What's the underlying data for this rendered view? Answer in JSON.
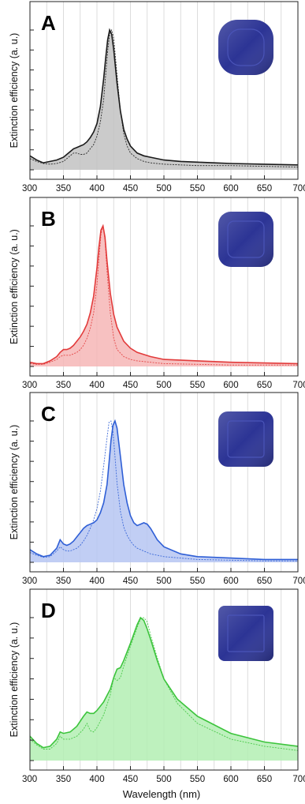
{
  "figure": {
    "xlabel": "Wavelength (nm)",
    "ylabel": "Extinction efficiency (a. u.)",
    "shape_icon_color": "#2c3495"
  },
  "chart_data": [
    {
      "panel": "A",
      "type": "line",
      "xlabel": "",
      "ylabel": "Extinction efficiency (a. u.)",
      "xlim": [
        300,
        700
      ],
      "xticks": [
        "300",
        "350",
        "400",
        "450",
        "500",
        "550",
        "600",
        "650",
        "700"
      ],
      "grid": "vertical",
      "color": "#1a1a1a",
      "fill_color": "#c2c2c2",
      "inset": "rounded-cube (strongly rounded)",
      "x": [
        300,
        310,
        320,
        330,
        340,
        350,
        355,
        360,
        365,
        370,
        375,
        380,
        385,
        390,
        395,
        400,
        405,
        410,
        413,
        416,
        419,
        422,
        425,
        430,
        435,
        440,
        445,
        450,
        460,
        470,
        480,
        500,
        525,
        550,
        575,
        600,
        650,
        700
      ],
      "series": [
        {
          "style": "solid",
          "values": [
            0.1,
            0.07,
            0.05,
            0.06,
            0.07,
            0.09,
            0.11,
            0.13,
            0.15,
            0.16,
            0.17,
            0.18,
            0.2,
            0.23,
            0.27,
            0.33,
            0.45,
            0.65,
            0.8,
            0.93,
            1.0,
            0.97,
            0.86,
            0.62,
            0.42,
            0.29,
            0.22,
            0.17,
            0.12,
            0.1,
            0.09,
            0.07,
            0.06,
            0.055,
            0.05,
            0.045,
            0.04,
            0.035
          ]
        },
        {
          "style": "dotted",
          "values": [
            0.08,
            0.06,
            0.045,
            0.04,
            0.045,
            0.06,
            0.08,
            0.1,
            0.12,
            0.12,
            0.11,
            0.11,
            0.12,
            0.15,
            0.18,
            0.24,
            0.34,
            0.5,
            0.68,
            0.85,
            0.97,
            1.0,
            0.94,
            0.68,
            0.42,
            0.26,
            0.17,
            0.12,
            0.08,
            0.06,
            0.05,
            0.04,
            0.035,
            0.03,
            0.03,
            0.03,
            0.025,
            0.02
          ]
        }
      ]
    },
    {
      "panel": "B",
      "type": "line",
      "xlabel": "",
      "ylabel": "Extinction efficiency (a. u.)",
      "xlim": [
        300,
        700
      ],
      "xticks": [
        "300",
        "350",
        "400",
        "450",
        "500",
        "550",
        "600",
        "650",
        "700"
      ],
      "grid": "vertical",
      "color": "#e23b3b",
      "fill_color": "#f6b6b6",
      "inset": "rounded-cube (moderately rounded)",
      "x": [
        300,
        310,
        320,
        330,
        340,
        345,
        350,
        355,
        360,
        365,
        370,
        375,
        380,
        385,
        390,
        395,
        400,
        403,
        406,
        409,
        412,
        415,
        420,
        425,
        430,
        440,
        450,
        460,
        480,
        500,
        550,
        600,
        650,
        700
      ],
      "series": [
        {
          "style": "solid",
          "values": [
            0.03,
            0.02,
            0.02,
            0.04,
            0.07,
            0.1,
            0.12,
            0.12,
            0.13,
            0.15,
            0.18,
            0.21,
            0.25,
            0.3,
            0.38,
            0.5,
            0.7,
            0.85,
            0.97,
            1.0,
            0.92,
            0.75,
            0.52,
            0.37,
            0.28,
            0.18,
            0.13,
            0.1,
            0.07,
            0.05,
            0.04,
            0.03,
            0.025,
            0.02
          ]
        },
        {
          "style": "dotted",
          "values": [
            0.02,
            0.015,
            0.015,
            0.03,
            0.05,
            0.07,
            0.08,
            0.08,
            0.08,
            0.09,
            0.1,
            0.12,
            0.15,
            0.2,
            0.27,
            0.38,
            0.58,
            0.76,
            0.94,
            1.0,
            0.9,
            0.68,
            0.38,
            0.2,
            0.12,
            0.07,
            0.05,
            0.04,
            0.03,
            0.02,
            0.015,
            0.01,
            0.01,
            0.01
          ]
        }
      ]
    },
    {
      "panel": "C",
      "type": "line",
      "xlabel": "",
      "ylabel": "Extinction efficiency (a. u.)",
      "xlim": [
        300,
        700
      ],
      "xticks": [
        "300",
        "350",
        "400",
        "450",
        "500",
        "550",
        "600",
        "650",
        "700"
      ],
      "grid": "vertical",
      "color": "#2f5fd6",
      "fill_color": "#b6c6f2",
      "inset": "rounded-cube (slightly rounded)",
      "x": [
        300,
        310,
        320,
        330,
        340,
        345,
        350,
        355,
        360,
        365,
        370,
        375,
        380,
        385,
        390,
        395,
        400,
        405,
        410,
        415,
        418,
        421,
        424,
        427,
        430,
        435,
        440,
        445,
        450,
        455,
        460,
        465,
        470,
        475,
        480,
        485,
        490,
        500,
        525,
        550,
        600,
        650,
        700
      ],
      "series": [
        {
          "style": "solid",
          "values": [
            0.09,
            0.06,
            0.04,
            0.05,
            0.1,
            0.16,
            0.13,
            0.12,
            0.13,
            0.15,
            0.18,
            0.21,
            0.24,
            0.26,
            0.27,
            0.28,
            0.3,
            0.35,
            0.42,
            0.55,
            0.7,
            0.86,
            0.97,
            1.0,
            0.95,
            0.75,
            0.55,
            0.42,
            0.33,
            0.28,
            0.26,
            0.27,
            0.28,
            0.27,
            0.24,
            0.2,
            0.16,
            0.11,
            0.06,
            0.04,
            0.03,
            0.02,
            0.02
          ]
        },
        {
          "style": "dotted",
          "values": [
            0.07,
            0.05,
            0.035,
            0.04,
            0.08,
            0.11,
            0.09,
            0.08,
            0.08,
            0.09,
            0.1,
            0.12,
            0.15,
            0.19,
            0.24,
            0.3,
            0.38,
            0.5,
            0.68,
            0.88,
            0.99,
            1.0,
            0.92,
            0.75,
            0.56,
            0.36,
            0.25,
            0.19,
            0.15,
            0.12,
            0.1,
            0.09,
            0.08,
            0.07,
            0.06,
            0.055,
            0.05,
            0.04,
            0.03,
            0.02,
            0.015,
            0.01,
            0.01
          ]
        }
      ]
    },
    {
      "panel": "D",
      "type": "line",
      "xlabel": "Wavelength (nm)",
      "ylabel": "Extinction efficiency (a. u.)",
      "xlim": [
        300,
        700
      ],
      "xticks": [
        "300",
        "350",
        "400",
        "450",
        "500",
        "550",
        "600",
        "650",
        "700"
      ],
      "grid": "vertical",
      "color": "#3cc43c",
      "fill_color": "#b3efb3",
      "inset": "cube (sharp edges)",
      "x": [
        300,
        310,
        320,
        330,
        340,
        345,
        350,
        360,
        370,
        380,
        385,
        390,
        395,
        400,
        410,
        420,
        425,
        430,
        435,
        440,
        450,
        460,
        465,
        470,
        475,
        480,
        490,
        500,
        520,
        550,
        600,
        650,
        700
      ],
      "series": [
        {
          "style": "solid",
          "values": [
            0.17,
            0.12,
            0.09,
            0.1,
            0.15,
            0.2,
            0.19,
            0.2,
            0.24,
            0.31,
            0.34,
            0.33,
            0.33,
            0.35,
            0.41,
            0.5,
            0.58,
            0.64,
            0.65,
            0.7,
            0.82,
            0.95,
            1.0,
            0.98,
            0.92,
            0.85,
            0.7,
            0.57,
            0.43,
            0.31,
            0.19,
            0.13,
            0.1
          ]
        },
        {
          "style": "dotted",
          "values": [
            0.15,
            0.11,
            0.08,
            0.08,
            0.12,
            0.17,
            0.15,
            0.15,
            0.17,
            0.22,
            0.26,
            0.21,
            0.2,
            0.23,
            0.32,
            0.46,
            0.58,
            0.56,
            0.58,
            0.66,
            0.8,
            0.93,
            0.99,
            1.0,
            0.97,
            0.88,
            0.72,
            0.57,
            0.4,
            0.26,
            0.15,
            0.1,
            0.07
          ]
        }
      ]
    }
  ]
}
